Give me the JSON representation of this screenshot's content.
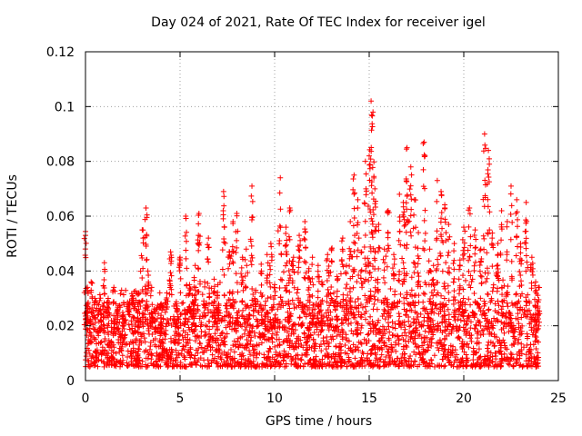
{
  "chart_data": {
    "type": "scatter",
    "title": "Day 024 of 2021, Rate Of TEC Index for receiver igel",
    "xlabel": "GPS time / hours",
    "ylabel": "ROTI / TECUs",
    "xlim": [
      0,
      25
    ],
    "ylim": [
      0,
      0.12
    ],
    "xticks": [
      0,
      5,
      10,
      15,
      20,
      25
    ],
    "xtick_labels": [
      "0",
      "5",
      "10",
      "15",
      "20",
      "25"
    ],
    "yticks": [
      0,
      0.02,
      0.04,
      0.06,
      0.08,
      0.1,
      0.12
    ],
    "ytick_labels": [
      "0",
      "0.02",
      "0.04",
      "0.06",
      "0.08",
      "0.1",
      "0.12"
    ],
    "grid": true,
    "marker": "+",
    "marker_color": "#ff0000",
    "series": [
      {
        "name": "ROTI",
        "x": [
          0.0,
          0.05,
          0.1,
          0.3,
          0.5,
          0.8,
          1.0,
          1.2,
          1.5,
          1.7,
          2.0,
          2.3,
          2.5,
          2.8,
          3.0,
          3.2,
          3.3,
          3.5,
          3.7,
          4.0,
          4.3,
          4.5,
          4.8,
          5.0,
          5.3,
          5.5,
          5.7,
          5.8,
          6.0,
          6.3,
          6.5,
          6.8,
          7.0,
          7.3,
          7.6,
          7.8,
          8.0,
          8.3,
          8.5,
          8.8,
          9.0,
          9.3,
          9.6,
          9.8,
          10.0,
          10.3,
          10.6,
          10.8,
          11.0,
          11.3,
          11.6,
          11.8,
          12.0,
          12.3,
          12.5,
          12.8,
          13.0,
          13.3,
          13.6,
          13.8,
          14.0,
          14.2,
          14.4,
          14.6,
          14.8,
          15.0,
          15.1,
          15.2,
          15.3,
          15.5,
          15.8,
          16.0,
          16.3,
          16.6,
          16.8,
          17.0,
          17.2,
          17.4,
          17.6,
          17.9,
          18.2,
          18.4,
          18.6,
          18.8,
          19.0,
          19.2,
          19.5,
          19.8,
          20.0,
          20.3,
          20.6,
          20.9,
          21.1,
          21.3,
          21.5,
          21.8,
          22.0,
          22.3,
          22.5,
          22.8,
          23.0,
          23.3,
          23.6,
          23.8,
          23.95
        ],
        "y": [
          0.053,
          0.025,
          0.034,
          0.036,
          0.03,
          0.026,
          0.043,
          0.03,
          0.034,
          0.026,
          0.024,
          0.028,
          0.031,
          0.032,
          0.055,
          0.063,
          0.04,
          0.034,
          0.026,
          0.028,
          0.032,
          0.047,
          0.028,
          0.045,
          0.06,
          0.035,
          0.028,
          0.042,
          0.061,
          0.036,
          0.052,
          0.037,
          0.035,
          0.069,
          0.047,
          0.058,
          0.061,
          0.045,
          0.048,
          0.071,
          0.033,
          0.04,
          0.046,
          0.05,
          0.035,
          0.074,
          0.056,
          0.063,
          0.045,
          0.053,
          0.058,
          0.04,
          0.045,
          0.042,
          0.036,
          0.046,
          0.048,
          0.038,
          0.052,
          0.042,
          0.058,
          0.075,
          0.066,
          0.047,
          0.08,
          0.082,
          0.102,
          0.098,
          0.07,
          0.057,
          0.048,
          0.062,
          0.046,
          0.068,
          0.065,
          0.085,
          0.078,
          0.066,
          0.054,
          0.087,
          0.048,
          0.042,
          0.073,
          0.069,
          0.063,
          0.057,
          0.05,
          0.044,
          0.056,
          0.063,
          0.055,
          0.048,
          0.09,
          0.084,
          0.052,
          0.046,
          0.062,
          0.058,
          0.071,
          0.066,
          0.05,
          0.065,
          0.045,
          0.036,
          0.034
        ],
        "baseline_band": [
          0.005,
          0.025
        ]
      }
    ]
  }
}
